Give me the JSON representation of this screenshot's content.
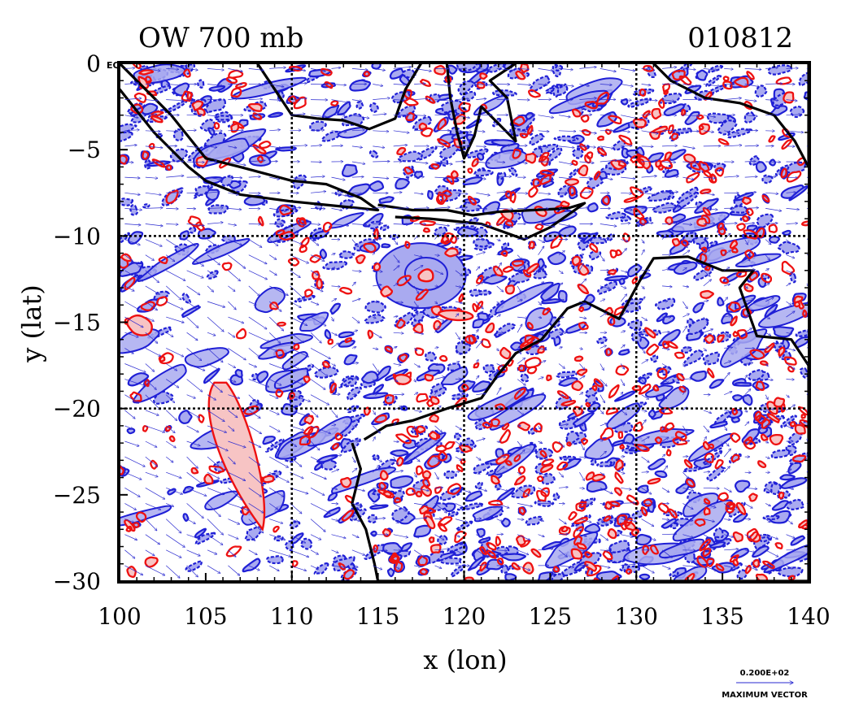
{
  "chart_data": {
    "type": "contour",
    "title_left": "OW 700 mb",
    "title_right": "010812",
    "xlabel": "x (lon)",
    "ylabel": "y (lat)",
    "xlim": [
      100,
      140
    ],
    "ylim": [
      -30,
      0
    ],
    "x_ticks": [
      100,
      105,
      110,
      115,
      120,
      125,
      130,
      135,
      140
    ],
    "x_tick_labels": [
      "100",
      "105",
      "110",
      "115",
      "120",
      "125",
      "130",
      "135",
      "140"
    ],
    "y_ticks": [
      0,
      -5,
      -10,
      -15,
      -20,
      -25,
      -30
    ],
    "y_tick_labels": [
      "0",
      "−5",
      "−10",
      "−15",
      "−20",
      "−25",
      "−30"
    ],
    "eq_label": "EQ",
    "grid_x": [
      110,
      120,
      130
    ],
    "grid_y": [
      -10,
      -20
    ],
    "contour_colors": {
      "negative": "#1f1fd6",
      "negative_fill": "#a9aaf0",
      "positive": "#ee1111",
      "positive_fill": "#f7c4c4"
    },
    "vector_color": "#2a2ad0",
    "coastline_color": "#000000",
    "vector_legend": {
      "value": "0.200E+02",
      "label": "MAXIMUM VECTOR"
    }
  }
}
